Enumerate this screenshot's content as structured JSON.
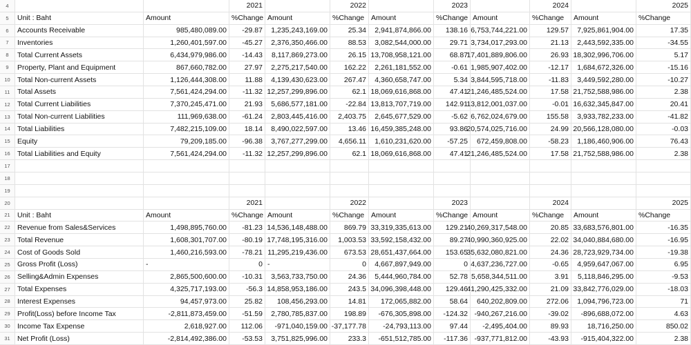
{
  "row_numbers": [
    4,
    5,
    6,
    7,
    8,
    9,
    10,
    11,
    12,
    13,
    14,
    15,
    16,
    17,
    18,
    19,
    20,
    21,
    22,
    23,
    24,
    25,
    26,
    27,
    28,
    29,
    30,
    31
  ],
  "tables": [
    {
      "years": [
        "2021",
        "2022",
        "2023",
        "2024",
        "2025"
      ],
      "unit_label": "Unit : Baht",
      "sub_headers": [
        "Amount",
        "%Change",
        "Amount",
        "%Change",
        "Amount",
        "%Change",
        "Amount",
        "%Change",
        "Amount",
        "%Change"
      ],
      "rows": [
        {
          "label": "Accounts Receivable",
          "cells": [
            "985,480,089.00",
            "-29.87",
            "1,235,243,169.00",
            "25.34",
            "2,941,874,866.00",
            "138.16",
            "6,753,744,221.00",
            "129.57",
            "7,925,861,904.00",
            "17.35"
          ]
        },
        {
          "label": "Inventories",
          "cells": [
            "1,260,401,597.00",
            "-45.27",
            "2,376,350,466.00",
            "88.53",
            "3,082,544,000.00",
            "29.71",
            "3,734,017,293.00",
            "21.13",
            "2,443,592,335.00",
            "-34.55"
          ]
        },
        {
          "label": "Total Current Assets",
          "cells": [
            "6,434,979,986.00",
            "-14.43",
            "8,117,869,273.00",
            "26.15",
            "13,708,958,121.00",
            "68.87",
            "17,401,889,806.00",
            "26.93",
            "18,302,996,706.00",
            "5.17"
          ]
        },
        {
          "label": "Property, Plant and Equipment",
          "cells": [
            "867,660,782.00",
            "27.97",
            "2,275,217,540.00",
            "162.22",
            "2,261,181,552.00",
            "-0.61",
            "1,985,907,402.00",
            "-12.17",
            "1,684,672,326.00",
            "-15.16"
          ]
        },
        {
          "label": "Total Non-current Assets",
          "cells": [
            "1,126,444,308.00",
            "11.88",
            "4,139,430,623.00",
            "267.47",
            "4,360,658,747.00",
            "5.34",
            "3,844,595,718.00",
            "-11.83",
            "3,449,592,280.00",
            "-10.27"
          ]
        },
        {
          "label": "Total Assets",
          "cells": [
            "7,561,424,294.00",
            "-11.32",
            "12,257,299,896.00",
            "62.1",
            "18,069,616,868.00",
            "47.41",
            "21,246,485,524.00",
            "17.58",
            "21,752,588,986.00",
            "2.38"
          ]
        },
        {
          "label": "Total Current Liabilities",
          "cells": [
            "7,370,245,471.00",
            "21.93",
            "5,686,577,181.00",
            "-22.84",
            "13,813,707,719.00",
            "142.91",
            "13,812,001,037.00",
            "-0.01",
            "16,632,345,847.00",
            "20.41"
          ]
        },
        {
          "label": "Total Non-current Liabilities",
          "cells": [
            "111,969,638.00",
            "-61.24",
            "2,803,445,416.00",
            "2,403.75",
            "2,645,677,529.00",
            "-5.62",
            "6,762,024,679.00",
            "155.58",
            "3,933,782,233.00",
            "-41.82"
          ]
        },
        {
          "label": "Total Liabilities",
          "cells": [
            "7,482,215,109.00",
            "18.14",
            "8,490,022,597.00",
            "13.46",
            "16,459,385,248.00",
            "93.86",
            "20,574,025,716.00",
            "24.99",
            "20,566,128,080.00",
            "-0.03"
          ]
        },
        {
          "label": "Equity",
          "cells": [
            "79,209,185.00",
            "-96.38",
            "3,767,277,299.00",
            "4,656.11",
            "1,610,231,620.00",
            "-57.25",
            "672,459,808.00",
            "-58.23",
            "1,186,460,906.00",
            "76.43"
          ]
        },
        {
          "label": "Total Liabilities and Equity",
          "cells": [
            "7,561,424,294.00",
            "-11.32",
            "12,257,299,896.00",
            "62.1",
            "18,069,616,868.00",
            "47.41",
            "21,246,485,524.00",
            "17.58",
            "21,752,588,986.00",
            "2.38"
          ]
        }
      ]
    },
    {
      "years": [
        "2021",
        "2022",
        "2023",
        "2024",
        "2025"
      ],
      "unit_label": "Unit : Baht",
      "sub_headers": [
        "Amount",
        "%Change",
        "Amount",
        "%Change",
        "Amount",
        "%Change",
        "Amount",
        "%Change",
        "Amount",
        "%Change"
      ],
      "rows": [
        {
          "label": "Revenue from Sales&Services",
          "cells": [
            "1,498,895,760.00",
            "-81.23",
            "14,536,148,488.00",
            "869.79",
            "33,319,335,613.00",
            "129.21",
            "40,269,317,548.00",
            "20.85",
            "33,683,576,801.00",
            "-16.35"
          ]
        },
        {
          "label": "Total Revenue",
          "cells": [
            "1,608,301,707.00",
            "-80.19",
            "17,748,195,316.00",
            "1,003.53",
            "33,592,158,432.00",
            "89.27",
            "40,990,360,925.00",
            "22.02",
            "34,040,884,680.00",
            "-16.95"
          ]
        },
        {
          "label": "Cost of Goods Sold",
          "cells": [
            "1,460,216,593.00",
            "-78.21",
            "11,295,219,436.00",
            "673.53",
            "28,651,437,664.00",
            "153.65",
            "35,632,080,821.00",
            "24.36",
            "28,723,929,734.00",
            "-19.38"
          ]
        },
        {
          "label": "Gross Profit (Loss)",
          "cells": [
            "-",
            "0",
            "-",
            "0",
            "4,667,897,949.00",
            "0",
            "4,637,236,727.00",
            "-0.65",
            "4,959,647,067.00",
            "6.95"
          ]
        },
        {
          "label": "Selling&Admin Expenses",
          "cells": [
            "2,865,500,600.00",
            "-10.31",
            "3,563,733,750.00",
            "24.36",
            "5,444,960,784.00",
            "52.78",
            "5,658,344,511.00",
            "3.91",
            "5,118,846,295.00",
            "-9.53"
          ]
        },
        {
          "label": "Total Expenses",
          "cells": [
            "4,325,717,193.00",
            "-56.3",
            "14,858,953,186.00",
            "243.5",
            "34,096,398,448.00",
            "129.46",
            "41,290,425,332.00",
            "21.09",
            "33,842,776,029.00",
            "-18.03"
          ]
        },
        {
          "label": "Interest Expenses",
          "cells": [
            "94,457,973.00",
            "25.82",
            "108,456,293.00",
            "14.81",
            "172,065,882.00",
            "58.64",
            "640,202,809.00",
            "272.06",
            "1,094,796,723.00",
            "71"
          ]
        },
        {
          "label": "Profit(Loss) before Income Tax",
          "cells": [
            "-2,811,873,459.00",
            "-51.59",
            "2,780,785,837.00",
            "198.89",
            "-676,305,898.00",
            "-124.32",
            "-940,267,216.00",
            "-39.02",
            "-896,688,072.00",
            "4.63"
          ]
        },
        {
          "label": "Income Tax Expense",
          "cells": [
            "2,618,927.00",
            "112.06",
            "-971,040,159.00",
            "-37,177.78",
            "-24,793,113.00",
            "97.44",
            "-2,495,404.00",
            "89.93",
            "18,716,250.00",
            "850.02"
          ]
        },
        {
          "label": "Net Profit (Loss)",
          "cells": [
            "-2,814,492,386.00",
            "-53.53",
            "3,751,825,996.00",
            "233.3",
            "-651,512,785.00",
            "-117.36",
            "-937,771,812.00",
            "-43.93",
            "-915,404,322.00",
            "2.38"
          ]
        }
      ]
    }
  ]
}
